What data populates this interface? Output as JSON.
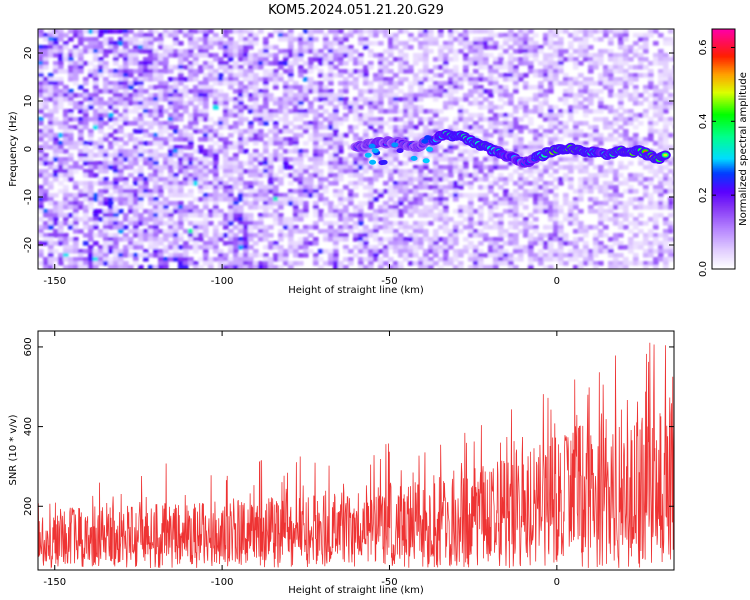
{
  "title": "KOM5.2024.051.21.20.G29",
  "chart_data": [
    {
      "type": "heatmap",
      "xlabel": "Height of straight line (km)",
      "ylabel": "Frequency (Hz)",
      "xlim": [
        -155,
        35
      ],
      "ylim": [
        -25,
        25
      ],
      "xticks": [
        -150,
        -100,
        -50,
        0
      ],
      "yticks": [
        -20,
        -10,
        0,
        10,
        20
      ],
      "colorbar": {
        "label": "Normalized spectral amplitude",
        "range": [
          0.0,
          0.65
        ],
        "ticks": [
          0.0,
          0.2,
          0.4,
          0.6
        ],
        "tick_labels": [
          "0.0",
          "0.2",
          "0.4",
          "0.6"
        ],
        "colors": [
          "#ffffff",
          "#c8a0ff",
          "#6a00ff",
          "#0000ff",
          "#00e5ff",
          "#00ff00",
          "#ffff00",
          "#ff8000",
          "#ff0000",
          "#ff00a0"
        ]
      },
      "signal_ridge": {
        "x": [
          -60,
          -50,
          -42,
          -37,
          -33,
          -28,
          -22,
          -16,
          -10,
          -5,
          0,
          5,
          10,
          15,
          20,
          25,
          30,
          33
        ],
        "y": [
          0.5,
          1.5,
          0.5,
          2,
          3,
          2.5,
          0.5,
          -1,
          -3,
          -1.5,
          0,
          0,
          -0.5,
          -1,
          -0.5,
          -0.5,
          -2,
          -1
        ],
        "amplitude": [
          0.3,
          0.3,
          0.3,
          0.35,
          0.45,
          0.5,
          0.45,
          0.4,
          0.35,
          0.4,
          0.6,
          0.55,
          0.45,
          0.4,
          0.6,
          0.5,
          0.6,
          0.4
        ]
      }
    },
    {
      "type": "line",
      "xlabel": "Height of straight line (km)",
      "ylabel": "SNR (10 * v/v)",
      "xlim": [
        -155,
        35
      ],
      "ylim": [
        40,
        640
      ],
      "xticks": [
        -150,
        -100,
        -50,
        0
      ],
      "yticks": [
        200,
        400,
        600
      ],
      "series": [
        {
          "color": "#ee3333",
          "x": [
            -155,
            -140,
            -120,
            -100,
            -80,
            -60,
            -40,
            -20,
            0,
            10,
            20,
            30,
            35
          ],
          "y_baseline": [
            105,
            110,
            115,
            120,
            125,
            130,
            145,
            165,
            185,
            200,
            210,
            220,
            225
          ],
          "y_upper": [
            190,
            200,
            210,
            215,
            225,
            240,
            270,
            320,
            380,
            420,
            470,
            520,
            540
          ],
          "y_peak": [
            280,
            270,
            355,
            300,
            330,
            330,
            400,
            440,
            500,
            560,
            640,
            640,
            600
          ]
        }
      ]
    }
  ]
}
